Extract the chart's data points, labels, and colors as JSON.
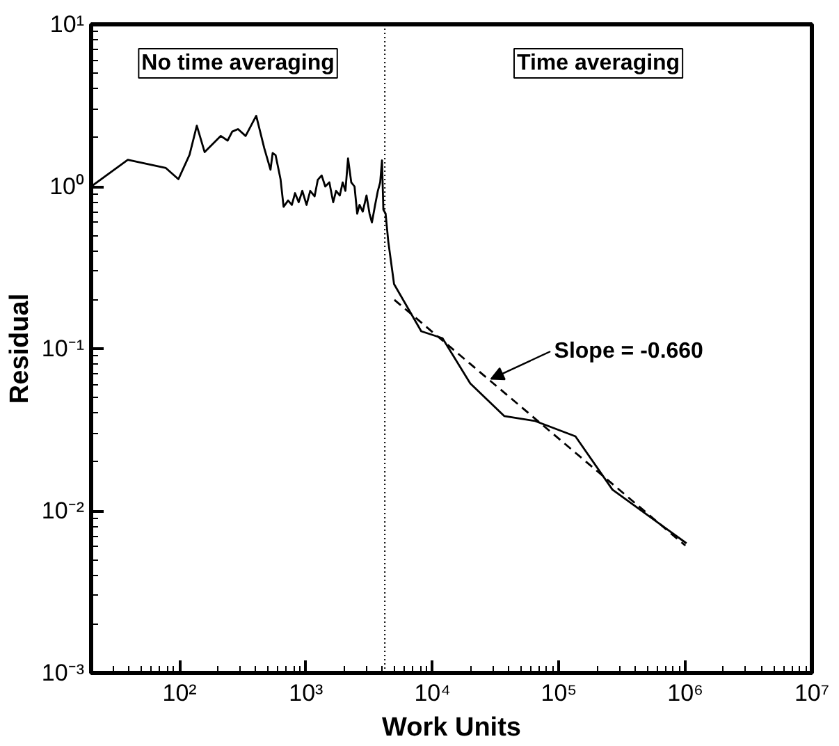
{
  "chart_data": {
    "type": "line",
    "xlabel": "Work Units",
    "ylabel": "Residual",
    "log": "xy",
    "marker": "none",
    "xlim": [
      20,
      10000000
    ],
    "xticks": [
      {
        "value": 100,
        "label": "10²"
      },
      {
        "value": 1000,
        "label": "10³"
      },
      {
        "value": 10000,
        "label": "10⁴"
      },
      {
        "value": 100000,
        "label": "10⁵"
      },
      {
        "value": 1000000,
        "label": "10⁶"
      },
      {
        "value": 10000000,
        "label": "10⁷"
      }
    ],
    "ylim": [
      0.001,
      10
    ],
    "yticks": [
      {
        "value": 0.001,
        "label": "10⁻³"
      },
      {
        "value": 0.01,
        "label": "10⁻²"
      },
      {
        "value": 0.1,
        "label": "10⁻¹"
      },
      {
        "value": 1,
        "label": "10⁰"
      },
      {
        "value": 10,
        "label": "10¹"
      }
    ],
    "series": [
      {
        "color": "#000000",
        "line_style": "solid",
        "x": [
          20,
          39,
          78,
          98,
          120,
          137,
          158,
          212,
          240,
          261,
          290,
          333,
          404,
          468,
          524,
          545,
          575,
          629,
          665,
          722,
          773,
          819,
          875,
          935,
          1010,
          1080,
          1170,
          1240,
          1330,
          1420,
          1530,
          1640,
          1730,
          1850,
          1950,
          2050,
          2150,
          2280,
          2420,
          2540,
          2650,
          2810,
          3010,
          3180,
          3320,
          3520,
          3700,
          3860,
          3990,
          4090,
          4260,
          4470,
          4970,
          8150,
          12000,
          19900,
          36900,
          64800,
          135000,
          265000,
          1020000
        ],
        "values": [
          1.0,
          1.46,
          1.3,
          1.11,
          1.57,
          2.37,
          1.63,
          2.05,
          1.92,
          2.18,
          2.26,
          2.05,
          2.73,
          1.72,
          1.27,
          1.61,
          1.56,
          1.11,
          0.75,
          0.82,
          0.77,
          0.91,
          0.8,
          0.94,
          0.77,
          0.94,
          0.87,
          1.1,
          1.17,
          1.0,
          1.06,
          0.8,
          0.94,
          0.88,
          1.06,
          0.94,
          1.49,
          1.06,
          1.0,
          0.68,
          0.77,
          0.7,
          0.88,
          0.68,
          0.6,
          0.77,
          0.94,
          1.06,
          1.45,
          0.72,
          0.68,
          0.46,
          0.25,
          0.128,
          0.116,
          0.061,
          0.0384,
          0.0358,
          0.0288,
          0.0135,
          0.0063
        ]
      },
      {
        "type": "line",
        "color": "#000000",
        "line_style": "dashed",
        "x": [
          5000,
          1000000
        ],
        "values": [
          0.2,
          0.0061
        ]
      }
    ],
    "ref_lines": [
      {
        "axis": "x",
        "value": 4200,
        "line_style": "dotted",
        "color": "#000000"
      }
    ],
    "annotations": [
      "No time averaging",
      "Time averaging",
      {
        "text": "Slope = -0.660",
        "x": 29000,
        "y": 0.065
      }
    ]
  }
}
